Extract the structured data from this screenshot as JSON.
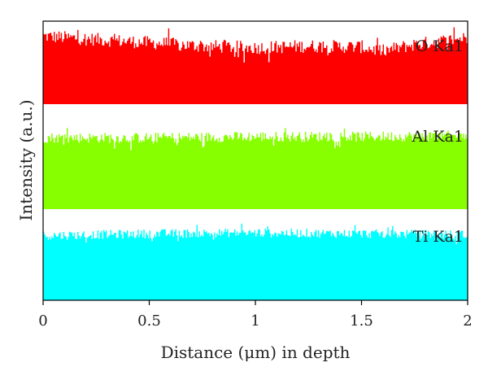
{
  "chart_data": {
    "type": "area",
    "title": "",
    "xlabel": "Distance (μm) in depth",
    "ylabel": "Intensity (a.u.)",
    "xlim": [
      0,
      2
    ],
    "xticks": [
      "0",
      "0.5",
      "1",
      "1.5",
      "2"
    ],
    "yticks": [],
    "grid": false,
    "legend": "none",
    "series": [
      {
        "name": "O Ka1",
        "color": "#ff0000",
        "x": [
          0,
          0.25,
          0.5,
          0.75,
          1.0,
          1.25,
          1.5,
          1.6,
          1.75,
          2.0
        ],
        "values": [
          0.82,
          0.78,
          0.74,
          0.7,
          0.68,
          0.7,
          0.69,
          0.64,
          0.72,
          0.8
        ],
        "noise": 0.08
      },
      {
        "name": "Al Ka1",
        "color": "#88ff00",
        "x": [
          0,
          0.5,
          1.0,
          1.5,
          2.0
        ],
        "values": [
          0.68,
          0.68,
          0.69,
          0.69,
          0.7
        ],
        "noise": 0.05
      },
      {
        "name": "Ti Ka1",
        "color": "#00ffff",
        "x": [
          0,
          0.5,
          1.0,
          1.5,
          2.0
        ],
        "values": [
          0.71,
          0.73,
          0.74,
          0.73,
          0.72
        ],
        "noise": 0.05
      }
    ]
  }
}
